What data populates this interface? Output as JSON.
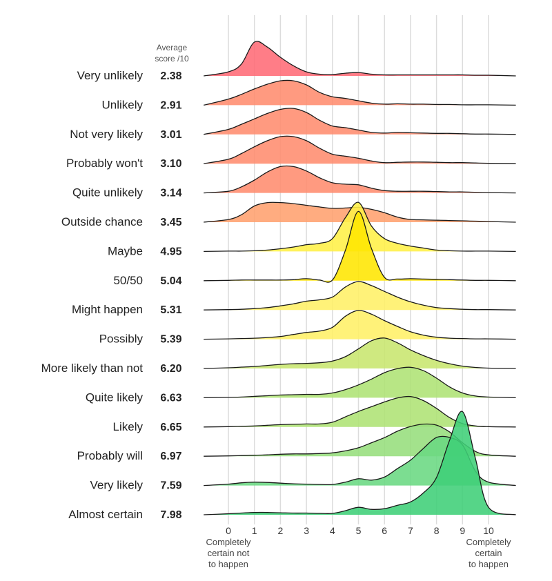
{
  "chart_data": {
    "type": "ridgeline",
    "title": "",
    "score_header": [
      "Average",
      "score /10"
    ],
    "xlabel": "",
    "xlim": [
      -0.95,
      11.05
    ],
    "x_ticks": [
      0,
      1,
      2,
      3,
      4,
      5,
      6,
      7,
      8,
      9,
      10
    ],
    "x_tick_labels": [
      "0",
      "1",
      "2",
      "3",
      "4",
      "5",
      "6",
      "7",
      "8",
      "9",
      "10"
    ],
    "x_end_labels": {
      "left": [
        "Completely",
        "certain not",
        "to happen"
      ],
      "right": [
        "Completely",
        "certain",
        "to happen"
      ]
    },
    "grid": true,
    "density_x": [
      -0.95,
      0,
      0.5,
      1,
      1.5,
      2,
      2.5,
      3,
      3.5,
      4,
      4.5,
      5,
      5.5,
      6,
      6.5,
      7,
      7.5,
      8,
      8.5,
      9,
      9.5,
      10,
      11.05
    ],
    "series": [
      {
        "name": "Very unlikely",
        "average": "2.38",
        "color": "#ff6b76",
        "density": [
          0,
          0.12,
          0.35,
          1.0,
          0.85,
          0.55,
          0.3,
          0.12,
          0.05,
          0.04,
          0.08,
          0.1,
          0.05,
          0.03,
          0.03,
          0.03,
          0.03,
          0.03,
          0.03,
          0.03,
          0.02,
          0.02,
          0
        ]
      },
      {
        "name": "Unlikely",
        "average": "2.91",
        "color": "#ff8c6e",
        "density": [
          0,
          0.18,
          0.32,
          0.48,
          0.62,
          0.72,
          0.72,
          0.6,
          0.38,
          0.25,
          0.2,
          0.13,
          0.06,
          0.03,
          0.04,
          0.03,
          0.03,
          0.02,
          0.02,
          0.01,
          0.01,
          0.01,
          0
        ]
      },
      {
        "name": "Not very likely",
        "average": "3.01",
        "color": "#ff8c6e",
        "density": [
          0,
          0.15,
          0.3,
          0.46,
          0.62,
          0.74,
          0.77,
          0.65,
          0.42,
          0.25,
          0.2,
          0.13,
          0.06,
          0.04,
          0.06,
          0.05,
          0.04,
          0.03,
          0.03,
          0.02,
          0.01,
          0.01,
          0
        ]
      },
      {
        "name": "Probably won't",
        "average": "3.10",
        "color": "#ff8c6e",
        "density": [
          0,
          0.13,
          0.3,
          0.5,
          0.68,
          0.8,
          0.8,
          0.68,
          0.46,
          0.28,
          0.22,
          0.16,
          0.08,
          0.03,
          0.04,
          0.05,
          0.05,
          0.04,
          0.03,
          0.03,
          0.02,
          0.01,
          0
        ]
      },
      {
        "name": "Quite unlikely",
        "average": "3.14",
        "color": "#ff8c6e",
        "density": [
          0,
          0.05,
          0.18,
          0.38,
          0.62,
          0.78,
          0.78,
          0.65,
          0.45,
          0.3,
          0.26,
          0.24,
          0.14,
          0.07,
          0.05,
          0.05,
          0.05,
          0.04,
          0.03,
          0.03,
          0.02,
          0.01,
          0
        ]
      },
      {
        "name": "Outside chance",
        "average": "3.45",
        "color": "#ffa06e",
        "density": [
          0,
          0.08,
          0.22,
          0.48,
          0.58,
          0.58,
          0.55,
          0.5,
          0.45,
          0.41,
          0.42,
          0.44,
          0.38,
          0.28,
          0.15,
          0.08,
          0.07,
          0.06,
          0.05,
          0.04,
          0.03,
          0.02,
          0
        ]
      },
      {
        "name": "Maybe",
        "average": "4.95",
        "color": "#fff047",
        "density": [
          0,
          0.01,
          0.01,
          0.02,
          0.04,
          0.08,
          0.13,
          0.2,
          0.24,
          0.38,
          1.0,
          1.45,
          0.75,
          0.38,
          0.24,
          0.16,
          0.1,
          0.04,
          0.02,
          0.01,
          0.01,
          0.01,
          0
        ]
      },
      {
        "name": "50/50",
        "average": "5.04",
        "color": "#ffe600",
        "density": [
          0,
          0.01,
          0.02,
          0.02,
          0.02,
          0.02,
          0.03,
          0.06,
          0.02,
          0.02,
          0.9,
          2.05,
          0.95,
          0.1,
          0.05,
          0.06,
          0.05,
          0.04,
          0.03,
          0.02,
          0.01,
          0.01,
          0
        ]
      },
      {
        "name": "Might happen",
        "average": "5.31",
        "color": "#fff066",
        "density": [
          0,
          0.01,
          0.02,
          0.04,
          0.07,
          0.12,
          0.18,
          0.26,
          0.3,
          0.38,
          0.68,
          0.84,
          0.72,
          0.55,
          0.38,
          0.24,
          0.14,
          0.07,
          0.04,
          0.02,
          0.01,
          0.01,
          0
        ]
      },
      {
        "name": "Possibly",
        "average": "5.39",
        "color": "#fff066",
        "density": [
          0,
          0.01,
          0.02,
          0.03,
          0.05,
          0.08,
          0.14,
          0.2,
          0.24,
          0.35,
          0.68,
          0.85,
          0.74,
          0.55,
          0.38,
          0.22,
          0.12,
          0.06,
          0.03,
          0.02,
          0.01,
          0.01,
          0
        ]
      },
      {
        "name": "More likely than not",
        "average": "6.20",
        "color": "#c8e66e",
        "density": [
          0,
          0.02,
          0.04,
          0.06,
          0.09,
          0.12,
          0.14,
          0.15,
          0.17,
          0.22,
          0.35,
          0.58,
          0.82,
          0.9,
          0.76,
          0.55,
          0.38,
          0.24,
          0.14,
          0.07,
          0.03,
          0.01,
          0
        ]
      },
      {
        "name": "Quite likely",
        "average": "6.63",
        "color": "#aee374",
        "density": [
          0,
          0.01,
          0.02,
          0.04,
          0.06,
          0.08,
          0.09,
          0.1,
          0.1,
          0.14,
          0.24,
          0.38,
          0.55,
          0.74,
          0.86,
          0.9,
          0.8,
          0.58,
          0.32,
          0.14,
          0.05,
          0.02,
          0
        ]
      },
      {
        "name": "Likely",
        "average": "6.65",
        "color": "#aee374",
        "density": [
          0,
          0.01,
          0.02,
          0.03,
          0.05,
          0.07,
          0.08,
          0.09,
          0.09,
          0.14,
          0.3,
          0.46,
          0.6,
          0.74,
          0.86,
          0.9,
          0.78,
          0.55,
          0.28,
          0.1,
          0.03,
          0.01,
          0
        ]
      },
      {
        "name": "Probably will",
        "average": "6.97",
        "color": "#96de7c",
        "density": [
          0,
          0.01,
          0.02,
          0.03,
          0.04,
          0.06,
          0.07,
          0.07,
          0.08,
          0.1,
          0.16,
          0.25,
          0.4,
          0.55,
          0.74,
          0.88,
          0.95,
          0.92,
          0.72,
          0.4,
          0.14,
          0.04,
          0
        ]
      },
      {
        "name": "Very likely",
        "average": "7.59",
        "color": "#6ad882",
        "density": [
          0,
          0.04,
          0.08,
          0.1,
          0.09,
          0.07,
          0.05,
          0.04,
          0.03,
          0.03,
          0.1,
          0.2,
          0.16,
          0.25,
          0.5,
          0.75,
          1.1,
          1.42,
          1.42,
          1.2,
          0.42,
          0.1,
          0
        ]
      },
      {
        "name": "Almost certain",
        "average": "7.98",
        "color": "#3fcf78",
        "density": [
          0,
          0.03,
          0.05,
          0.07,
          0.07,
          0.06,
          0.05,
          0.05,
          0.04,
          0.04,
          0.12,
          0.22,
          0.16,
          0.18,
          0.28,
          0.38,
          0.65,
          1.1,
          2.2,
          3.05,
          1.65,
          0.22,
          0
        ]
      }
    ]
  }
}
